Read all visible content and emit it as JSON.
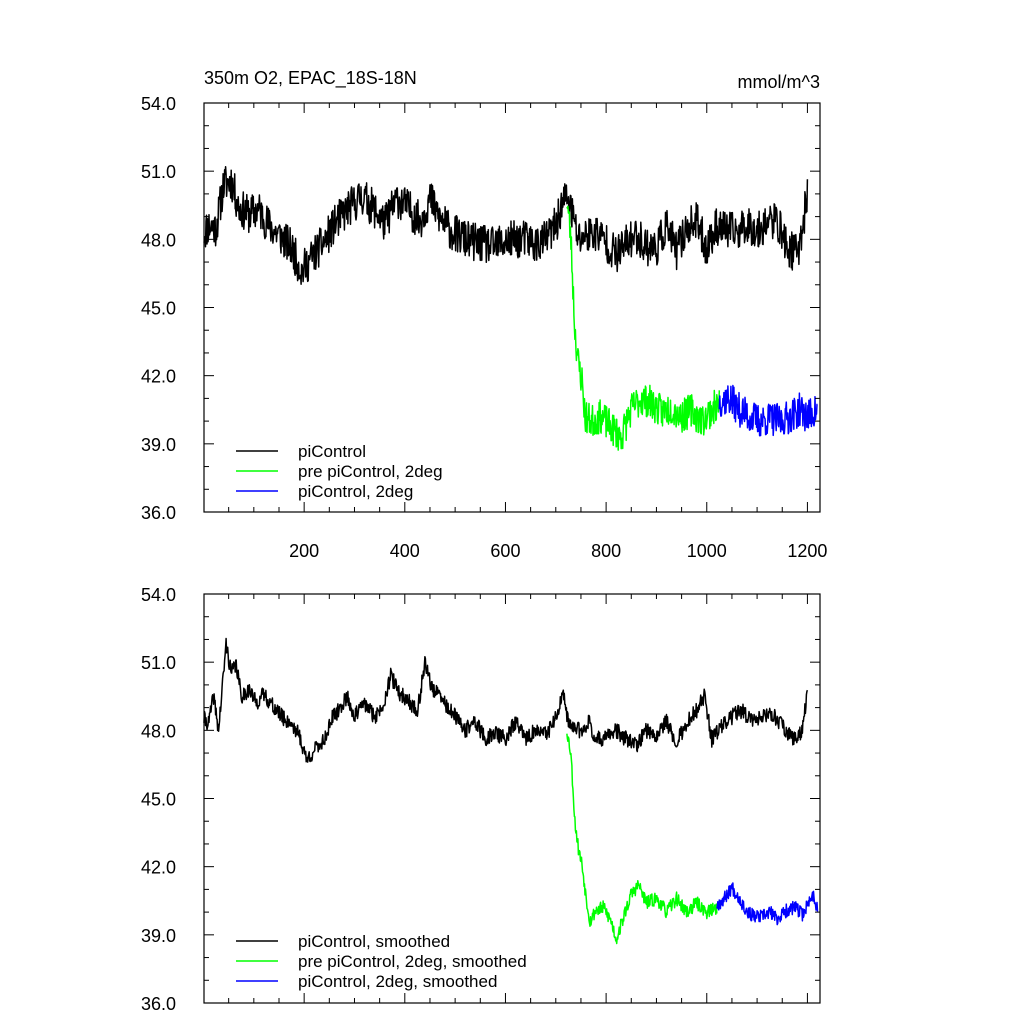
{
  "chart_data": [
    {
      "type": "line",
      "title_left": "350m O2, EPAC_18S-18N",
      "title_right": "mmol/m^3",
      "xlabel": "",
      "ylabel": "",
      "xlim": [
        1,
        1225
      ],
      "ylim": [
        36.0,
        54.0
      ],
      "yticks": [
        36.0,
        39.0,
        42.0,
        45.0,
        48.0,
        51.0,
        54.0
      ],
      "ytick_labels": [
        "36.0",
        "39.0",
        "42.0",
        "45.0",
        "48.0",
        "51.0",
        "54.0"
      ],
      "xticks": [
        200,
        400,
        600,
        800,
        1000,
        1200
      ],
      "xtick_labels": [
        "200",
        "400",
        "600",
        "800",
        "1000",
        "1200"
      ],
      "grid": false,
      "legend_position": "bottom-left",
      "series": [
        {
          "name": "piControl",
          "color": "#000000",
          "anchors": [
            [
              1,
              48.3
            ],
            [
              10,
              48.6
            ],
            [
              25,
              48.5
            ],
            [
              40,
              50.4
            ],
            [
              55,
              50.6
            ],
            [
              70,
              49.4
            ],
            [
              90,
              49.1
            ],
            [
              110,
              49.3
            ],
            [
              130,
              48.6
            ],
            [
              150,
              48.2
            ],
            [
              175,
              47.6
            ],
            [
              195,
              46.6
            ],
            [
              215,
              47.2
            ],
            [
              240,
              47.9
            ],
            [
              265,
              48.8
            ],
            [
              290,
              49.4
            ],
            [
              315,
              49.9
            ],
            [
              340,
              49.3
            ],
            [
              360,
              48.7
            ],
            [
              385,
              49.8
            ],
            [
              410,
              49.3
            ],
            [
              430,
              48.8
            ],
            [
              450,
              49.8
            ],
            [
              470,
              48.9
            ],
            [
              495,
              48.3
            ],
            [
              520,
              48.0
            ],
            [
              550,
              47.8
            ],
            [
              575,
              47.7
            ],
            [
              600,
              47.9
            ],
            [
              620,
              48.0
            ],
            [
              640,
              48.0
            ],
            [
              660,
              47.8
            ],
            [
              680,
              48.0
            ],
            [
              700,
              48.6
            ],
            [
              715,
              49.7
            ],
            [
              725,
              49.8
            ],
            [
              745,
              48.0
            ],
            [
              760,
              48.2
            ],
            [
              780,
              48.3
            ],
            [
              800,
              47.9
            ],
            [
              820,
              47.3
            ],
            [
              840,
              47.8
            ],
            [
              860,
              48.2
            ],
            [
              880,
              47.7
            ],
            [
              900,
              47.6
            ],
            [
              920,
              48.6
            ],
            [
              940,
              47.5
            ],
            [
              960,
              48.5
            ],
            [
              980,
              48.8
            ],
            [
              1000,
              47.6
            ],
            [
              1020,
              48.6
            ],
            [
              1040,
              48.4
            ],
            [
              1060,
              48.3
            ],
            [
              1080,
              48.7
            ],
            [
              1100,
              48.3
            ],
            [
              1120,
              48.8
            ],
            [
              1140,
              48.8
            ],
            [
              1160,
              47.6
            ],
            [
              1180,
              47.4
            ],
            [
              1190,
              48.5
            ],
            [
              1200,
              50.0
            ]
          ],
          "noise": 0.85,
          "seed": 11
        },
        {
          "name": "pre piControl, 2deg",
          "color": "#00ff00",
          "anchors": [
            [
              722,
              49.8
            ],
            [
              730,
              48.0
            ],
            [
              738,
              44.0
            ],
            [
              745,
              42.5
            ],
            [
              752,
              41.8
            ],
            [
              758,
              40.2
            ],
            [
              770,
              40.0
            ],
            [
              790,
              40.2
            ],
            [
              810,
              39.7
            ],
            [
              830,
              39.3
            ],
            [
              850,
              40.5
            ],
            [
              870,
              41.0
            ],
            [
              890,
              40.8
            ],
            [
              910,
              40.4
            ],
            [
              930,
              40.6
            ],
            [
              950,
              40.2
            ],
            [
              970,
              40.5
            ],
            [
              990,
              40.0
            ],
            [
              1010,
              40.5
            ],
            [
              1025,
              40.8
            ]
          ],
          "noise": 0.75,
          "seed": 23
        },
        {
          "name": "piControl, 2deg",
          "color": "#0000ff",
          "anchors": [
            [
              1025,
              40.9
            ],
            [
              1045,
              41.0
            ],
            [
              1065,
              40.5
            ],
            [
              1085,
              40.2
            ],
            [
              1105,
              40.0
            ],
            [
              1125,
              40.1
            ],
            [
              1145,
              40.0
            ],
            [
              1165,
              40.2
            ],
            [
              1185,
              40.5
            ],
            [
              1200,
              40.2
            ],
            [
              1220,
              40.5
            ]
          ],
          "noise": 0.75,
          "seed": 37
        }
      ]
    },
    {
      "type": "line",
      "title_left": "",
      "title_right": "",
      "xlabel": "",
      "ylabel": "",
      "xlim": [
        1,
        1225
      ],
      "ylim": [
        36.0,
        54.0
      ],
      "yticks": [
        36.0,
        39.0,
        42.0,
        45.0,
        48.0,
        51.0,
        54.0
      ],
      "ytick_labels": [
        "36.0",
        "39.0",
        "42.0",
        "45.0",
        "48.0",
        "51.0",
        "54.0"
      ],
      "xticks": [
        200,
        400,
        600,
        800,
        1000,
        1200
      ],
      "xtick_labels": [],
      "grid": false,
      "legend_position": "bottom-left",
      "series": [
        {
          "name": "piControl, smoothed",
          "color": "#000000",
          "anchors": [
            [
              1,
              48.5
            ],
            [
              10,
              48.3
            ],
            [
              20,
              49.5
            ],
            [
              30,
              48.0
            ],
            [
              45,
              51.8
            ],
            [
              55,
              50.5
            ],
            [
              65,
              50.9
            ],
            [
              75,
              49.5
            ],
            [
              90,
              49.8
            ],
            [
              105,
              49.2
            ],
            [
              120,
              49.6
            ],
            [
              140,
              49.0
            ],
            [
              160,
              48.5
            ],
            [
              175,
              48.3
            ],
            [
              190,
              47.8
            ],
            [
              205,
              46.7
            ],
            [
              220,
              47.1
            ],
            [
              240,
              47.6
            ],
            [
              255,
              48.5
            ],
            [
              270,
              48.9
            ],
            [
              285,
              49.5
            ],
            [
              300,
              48.6
            ],
            [
              320,
              49.2
            ],
            [
              340,
              48.6
            ],
            [
              355,
              49.0
            ],
            [
              372,
              50.4
            ],
            [
              390,
              49.6
            ],
            [
              408,
              49.3
            ],
            [
              425,
              48.8
            ],
            [
              440,
              51.0
            ],
            [
              455,
              49.8
            ],
            [
              470,
              49.5
            ],
            [
              485,
              49.0
            ],
            [
              500,
              48.6
            ],
            [
              520,
              48.0
            ],
            [
              540,
              48.4
            ],
            [
              560,
              47.6
            ],
            [
              580,
              47.9
            ],
            [
              600,
              47.6
            ],
            [
              620,
              48.4
            ],
            [
              640,
              47.6
            ],
            [
              660,
              48.0
            ],
            [
              680,
              47.8
            ],
            [
              700,
              48.5
            ],
            [
              715,
              49.6
            ],
            [
              722,
              48.5
            ],
            [
              735,
              48.1
            ],
            [
              750,
              48.0
            ],
            [
              765,
              48.4
            ],
            [
              780,
              47.6
            ],
            [
              800,
              47.7
            ],
            [
              820,
              48.0
            ],
            [
              840,
              47.6
            ],
            [
              860,
              47.3
            ],
            [
              880,
              48.0
            ],
            [
              900,
              47.8
            ],
            [
              920,
              48.4
            ],
            [
              940,
              47.5
            ],
            [
              960,
              48.3
            ],
            [
              980,
              48.9
            ],
            [
              995,
              49.5
            ],
            [
              1010,
              47.6
            ],
            [
              1030,
              48.2
            ],
            [
              1050,
              48.6
            ],
            [
              1070,
              48.9
            ],
            [
              1090,
              48.4
            ],
            [
              1110,
              48.6
            ],
            [
              1130,
              48.7
            ],
            [
              1150,
              48.2
            ],
            [
              1170,
              47.6
            ],
            [
              1190,
              48.0
            ],
            [
              1200,
              49.8
            ]
          ],
          "noise": 0.35,
          "seed": 41
        },
        {
          "name": "pre piControl, 2deg, smoothed",
          "color": "#00ff00",
          "anchors": [
            [
              722,
              48.0
            ],
            [
              730,
              47.0
            ],
            [
              738,
              44.0
            ],
            [
              745,
              42.8
            ],
            [
              752,
              42.1
            ],
            [
              760,
              40.7
            ],
            [
              768,
              39.6
            ],
            [
              780,
              40.1
            ],
            [
              795,
              40.2
            ],
            [
              810,
              39.6
            ],
            [
              820,
              38.8
            ],
            [
              835,
              39.8
            ],
            [
              850,
              40.8
            ],
            [
              865,
              41.2
            ],
            [
              880,
              40.4
            ],
            [
              900,
              40.6
            ],
            [
              920,
              40.0
            ],
            [
              940,
              40.6
            ],
            [
              960,
              40.0
            ],
            [
              980,
              40.4
            ],
            [
              1000,
              40.0
            ],
            [
              1020,
              40.2
            ]
          ],
          "noise": 0.3,
          "seed": 53
        },
        {
          "name": "piControl, 2deg, smoothed",
          "color": "#0000ff",
          "anchors": [
            [
              1020,
              40.3
            ],
            [
              1035,
              40.6
            ],
            [
              1050,
              41.1
            ],
            [
              1065,
              40.6
            ],
            [
              1080,
              40.0
            ],
            [
              1095,
              39.8
            ],
            [
              1110,
              39.8
            ],
            [
              1125,
              40.0
            ],
            [
              1140,
              39.7
            ],
            [
              1160,
              40.1
            ],
            [
              1175,
              40.2
            ],
            [
              1190,
              39.9
            ],
            [
              1200,
              40.3
            ],
            [
              1210,
              40.8
            ],
            [
              1220,
              40.2
            ]
          ],
          "noise": 0.3,
          "seed": 67
        }
      ]
    }
  ]
}
